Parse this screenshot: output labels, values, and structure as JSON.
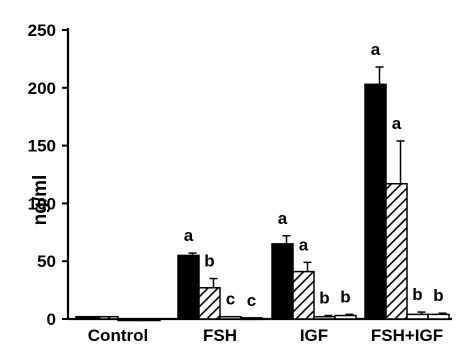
{
  "chart_data": {
    "type": "bar",
    "ylabel": "ng/ml",
    "xlabel": "",
    "title": "",
    "ylim": [
      0,
      250
    ],
    "yticks": [
      0,
      50,
      100,
      150,
      200,
      250
    ],
    "categories": [
      "Control",
      "FSH",
      "IGF",
      "FSH+IGF"
    ],
    "series": [
      {
        "fill": "solid",
        "values": [
          2,
          55,
          65,
          203
        ],
        "errors": [
          0,
          2,
          7,
          15
        ],
        "sig": [
          "",
          "a",
          "a",
          "a"
        ]
      },
      {
        "fill": "hatched",
        "values": [
          2,
          27,
          41,
          117
        ],
        "errors": [
          0,
          8,
          8,
          37
        ],
        "sig": [
          "",
          "b",
          "a",
          "a"
        ]
      },
      {
        "fill": "open",
        "values": [
          0,
          2,
          2,
          4
        ],
        "errors": [
          0,
          0,
          1,
          2
        ],
        "sig": [
          "",
          "c",
          "b",
          "b"
        ]
      },
      {
        "fill": "open",
        "values": [
          0,
          1,
          3,
          4
        ],
        "errors": [
          0,
          0,
          1,
          1
        ],
        "sig": [
          "",
          "c",
          "b",
          "b"
        ]
      }
    ],
    "grid": false,
    "legend": "none",
    "colors": {
      "bar_solid": "#000000",
      "outline": "#000000",
      "open": "#ffffff"
    }
  }
}
